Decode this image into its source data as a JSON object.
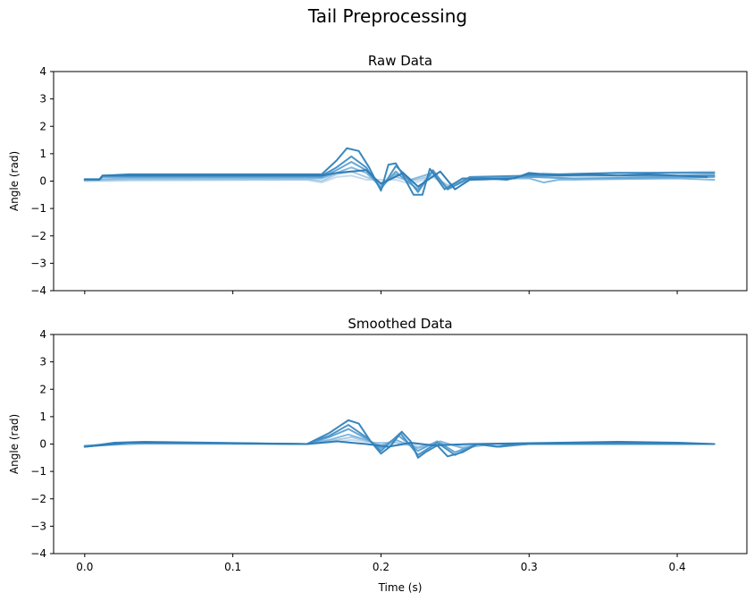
{
  "figure": {
    "title": "Tail Preprocessing"
  },
  "chart_data": [
    {
      "type": "line",
      "title": "Raw Data",
      "xlabel": "",
      "ylabel": "Angle (rad)",
      "xlim": [
        -0.021,
        0.447
      ],
      "ylim": [
        -4,
        4
      ],
      "xticks": [
        0.0,
        0.1,
        0.2,
        0.3,
        0.4
      ],
      "xtick_labels_shown": false,
      "yticks": [
        -4,
        -3,
        -2,
        -1,
        0,
        1,
        2,
        3,
        4
      ],
      "ytick_labels": [
        "−4",
        "−3",
        "−2",
        "−1",
        "0",
        "1",
        "2",
        "3",
        "4"
      ],
      "grid": false,
      "legend": "none",
      "series": [
        {
          "color": "#c6dbef",
          "width": 2.0,
          "points": [
            [
              0,
              0.0
            ],
            [
              0.03,
              0.02
            ],
            [
              0.15,
              0.05
            ],
            [
              0.16,
              -0.05
            ],
            [
              0.17,
              0.15
            ],
            [
              0.18,
              0.2
            ],
            [
              0.19,
              0.05
            ],
            [
              0.2,
              0.05
            ],
            [
              0.21,
              0.05
            ],
            [
              0.22,
              -0.1
            ],
            [
              0.235,
              0.15
            ],
            [
              0.245,
              -0.2
            ],
            [
              0.255,
              0.05
            ],
            [
              0.27,
              0.05
            ],
            [
              0.3,
              0.15
            ],
            [
              0.31,
              0.3
            ],
            [
              0.33,
              0.2
            ],
            [
              0.38,
              0.3
            ],
            [
              0.425,
              0.35
            ]
          ]
        },
        {
          "color": "#a9cce5",
          "width": 2.0,
          "points": [
            [
              0,
              0.0
            ],
            [
              0.03,
              0.05
            ],
            [
              0.15,
              0.05
            ],
            [
              0.16,
              0.0
            ],
            [
              0.17,
              0.25
            ],
            [
              0.18,
              0.35
            ],
            [
              0.19,
              0.15
            ],
            [
              0.2,
              -0.05
            ],
            [
              0.21,
              0.15
            ],
            [
              0.22,
              0.0
            ],
            [
              0.235,
              0.2
            ],
            [
              0.245,
              -0.15
            ],
            [
              0.26,
              0.05
            ],
            [
              0.3,
              0.2
            ],
            [
              0.33,
              0.05
            ],
            [
              0.38,
              0.15
            ],
            [
              0.425,
              0.25
            ]
          ]
        },
        {
          "color": "#84b9de",
          "width": 2.0,
          "points": [
            [
              0,
              0.05
            ],
            [
              0.03,
              0.1
            ],
            [
              0.16,
              0.1
            ],
            [
              0.17,
              0.3
            ],
            [
              0.18,
              0.5
            ],
            [
              0.19,
              0.3
            ],
            [
              0.2,
              -0.2
            ],
            [
              0.205,
              0.1
            ],
            [
              0.21,
              0.25
            ],
            [
              0.22,
              0.05
            ],
            [
              0.235,
              0.3
            ],
            [
              0.245,
              -0.25
            ],
            [
              0.26,
              0.1
            ],
            [
              0.3,
              0.1
            ],
            [
              0.31,
              -0.05
            ],
            [
              0.32,
              0.05
            ],
            [
              0.4,
              0.1
            ],
            [
              0.425,
              0.05
            ]
          ]
        },
        {
          "color": "#65a6d4",
          "width": 2.0,
          "points": [
            [
              0,
              0.05
            ],
            [
              0.01,
              0.05
            ],
            [
              0.012,
              0.15
            ],
            [
              0.03,
              0.15
            ],
            [
              0.16,
              0.15
            ],
            [
              0.17,
              0.4
            ],
            [
              0.18,
              0.7
            ],
            [
              0.19,
              0.4
            ],
            [
              0.2,
              -0.25
            ],
            [
              0.21,
              0.35
            ],
            [
              0.215,
              0.1
            ],
            [
              0.225,
              -0.3
            ],
            [
              0.235,
              0.35
            ],
            [
              0.245,
              -0.3
            ],
            [
              0.26,
              0.1
            ],
            [
              0.3,
              0.15
            ],
            [
              0.33,
              0.1
            ],
            [
              0.425,
              0.15
            ]
          ]
        },
        {
          "color": "#4a93c6",
          "width": 2.0,
          "points": [
            [
              0,
              0.05
            ],
            [
              0.01,
              0.05
            ],
            [
              0.012,
              0.2
            ],
            [
              0.03,
              0.2
            ],
            [
              0.16,
              0.2
            ],
            [
              0.17,
              0.5
            ],
            [
              0.18,
              0.9
            ],
            [
              0.19,
              0.5
            ],
            [
              0.2,
              -0.3
            ],
            [
              0.21,
              0.55
            ],
            [
              0.215,
              0.3
            ],
            [
              0.225,
              -0.4
            ],
            [
              0.235,
              0.4
            ],
            [
              0.245,
              -0.3
            ],
            [
              0.26,
              0.15
            ],
            [
              0.3,
              0.2
            ],
            [
              0.33,
              0.2
            ],
            [
              0.425,
              0.2
            ]
          ]
        },
        {
          "color": "#3a87bd",
          "width": 2.0,
          "points": [
            [
              0,
              0.05
            ],
            [
              0.01,
              0.05
            ],
            [
              0.012,
              0.2
            ],
            [
              0.03,
              0.25
            ],
            [
              0.16,
              0.25
            ],
            [
              0.17,
              0.75
            ],
            [
              0.177,
              1.2
            ],
            [
              0.185,
              1.1
            ],
            [
              0.192,
              0.5
            ],
            [
              0.2,
              -0.35
            ],
            [
              0.205,
              0.6
            ],
            [
              0.21,
              0.65
            ],
            [
              0.215,
              0.2
            ],
            [
              0.222,
              -0.5
            ],
            [
              0.228,
              -0.5
            ],
            [
              0.233,
              0.45
            ],
            [
              0.243,
              -0.3
            ],
            [
              0.255,
              0.1
            ],
            [
              0.27,
              0.1
            ],
            [
              0.285,
              0.05
            ],
            [
              0.3,
              0.25
            ],
            [
              0.32,
              0.25
            ],
            [
              0.36,
              0.3
            ],
            [
              0.425,
              0.3
            ]
          ]
        },
        {
          "color": "#2f7db7",
          "width": 2.0,
          "points": [
            [
              0,
              0.07
            ],
            [
              0.01,
              0.07
            ],
            [
              0.012,
              0.2
            ],
            [
              0.03,
              0.2
            ],
            [
              0.16,
              0.2
            ],
            [
              0.17,
              0.3
            ],
            [
              0.19,
              0.4
            ],
            [
              0.2,
              -0.1
            ],
            [
              0.215,
              0.3
            ],
            [
              0.225,
              -0.2
            ],
            [
              0.24,
              0.35
            ],
            [
              0.25,
              -0.3
            ],
            [
              0.26,
              0.05
            ],
            [
              0.29,
              0.1
            ],
            [
              0.3,
              0.3
            ],
            [
              0.32,
              0.2
            ],
            [
              0.34,
              0.25
            ],
            [
              0.36,
              0.2
            ],
            [
              0.38,
              0.25
            ],
            [
              0.4,
              0.2
            ],
            [
              0.42,
              0.15
            ]
          ]
        }
      ]
    },
    {
      "type": "line",
      "title": "Smoothed Data",
      "xlabel": "Time (s)",
      "ylabel": "Angle (rad)",
      "xlim": [
        -0.021,
        0.447
      ],
      "ylim": [
        -4,
        4
      ],
      "xticks": [
        0.0,
        0.1,
        0.2,
        0.3,
        0.4
      ],
      "xtick_labels": [
        "0.0",
        "0.1",
        "0.2",
        "0.3",
        "0.4"
      ],
      "yticks": [
        -4,
        -3,
        -2,
        -1,
        0,
        1,
        2,
        3,
        4
      ],
      "ytick_labels": [
        "−4",
        "−3",
        "−2",
        "−1",
        "0",
        "1",
        "2",
        "3",
        "4"
      ],
      "grid": false,
      "legend": "none",
      "series": [
        {
          "color": "#c6dbef",
          "width": 2.0,
          "points": [
            [
              0,
              -0.05
            ],
            [
              0.04,
              0.0
            ],
            [
              0.15,
              0.0
            ],
            [
              0.165,
              0.05
            ],
            [
              0.18,
              0.15
            ],
            [
              0.195,
              0.05
            ],
            [
              0.21,
              -0.05
            ],
            [
              0.225,
              0.0
            ],
            [
              0.24,
              -0.05
            ],
            [
              0.26,
              0.0
            ],
            [
              0.3,
              0.0
            ],
            [
              0.425,
              0.0
            ]
          ]
        },
        {
          "color": "#a9cce5",
          "width": 2.0,
          "points": [
            [
              0,
              -0.05
            ],
            [
              0.04,
              0.02
            ],
            [
              0.15,
              0.0
            ],
            [
              0.165,
              0.1
            ],
            [
              0.18,
              0.25
            ],
            [
              0.195,
              0.05
            ],
            [
              0.21,
              0.05
            ],
            [
              0.225,
              -0.1
            ],
            [
              0.24,
              0.05
            ],
            [
              0.255,
              -0.1
            ],
            [
              0.27,
              0.0
            ],
            [
              0.3,
              0.0
            ],
            [
              0.425,
              0.0
            ]
          ]
        },
        {
          "color": "#84b9de",
          "width": 2.0,
          "points": [
            [
              0,
              -0.08
            ],
            [
              0.04,
              0.03
            ],
            [
              0.15,
              0.0
            ],
            [
              0.165,
              0.15
            ],
            [
              0.178,
              0.35
            ],
            [
              0.19,
              0.15
            ],
            [
              0.2,
              -0.05
            ],
            [
              0.21,
              0.15
            ],
            [
              0.225,
              -0.15
            ],
            [
              0.24,
              0.1
            ],
            [
              0.255,
              -0.15
            ],
            [
              0.275,
              0.0
            ],
            [
              0.3,
              0.0
            ],
            [
              0.425,
              0.0
            ]
          ]
        },
        {
          "color": "#65a6d4",
          "width": 2.0,
          "points": [
            [
              0,
              -0.08
            ],
            [
              0.03,
              0.05
            ],
            [
              0.15,
              0.0
            ],
            [
              0.165,
              0.25
            ],
            [
              0.178,
              0.55
            ],
            [
              0.19,
              0.2
            ],
            [
              0.2,
              -0.15
            ],
            [
              0.212,
              0.3
            ],
            [
              0.225,
              -0.25
            ],
            [
              0.238,
              0.1
            ],
            [
              0.25,
              -0.3
            ],
            [
              0.265,
              0.0
            ],
            [
              0.28,
              -0.1
            ],
            [
              0.3,
              0.0
            ],
            [
              0.425,
              0.0
            ]
          ]
        },
        {
          "color": "#4a93c6",
          "width": 2.0,
          "points": [
            [
              0,
              -0.1
            ],
            [
              0.03,
              0.06
            ],
            [
              0.15,
              0.0
            ],
            [
              0.165,
              0.3
            ],
            [
              0.178,
              0.7
            ],
            [
              0.19,
              0.25
            ],
            [
              0.2,
              -0.25
            ],
            [
              0.213,
              0.4
            ],
            [
              0.225,
              -0.4
            ],
            [
              0.238,
              0.05
            ],
            [
              0.25,
              -0.4
            ],
            [
              0.265,
              0.0
            ],
            [
              0.28,
              -0.1
            ],
            [
              0.295,
              0.0
            ],
            [
              0.425,
              0.0
            ]
          ]
        },
        {
          "color": "#3a87bd",
          "width": 2.0,
          "points": [
            [
              0,
              -0.1
            ],
            [
              0.02,
              0.05
            ],
            [
              0.04,
              0.08
            ],
            [
              0.15,
              0.0
            ],
            [
              0.165,
              0.4
            ],
            [
              0.178,
              0.87
            ],
            [
              0.185,
              0.75
            ],
            [
              0.193,
              0.1
            ],
            [
              0.2,
              -0.35
            ],
            [
              0.206,
              -0.1
            ],
            [
              0.214,
              0.45
            ],
            [
              0.22,
              0.1
            ],
            [
              0.225,
              -0.5
            ],
            [
              0.23,
              -0.3
            ],
            [
              0.238,
              -0.05
            ],
            [
              0.245,
              -0.45
            ],
            [
              0.255,
              -0.3
            ],
            [
              0.265,
              0.0
            ],
            [
              0.278,
              -0.1
            ],
            [
              0.29,
              0.0
            ],
            [
              0.36,
              0.05
            ],
            [
              0.425,
              0.0
            ]
          ]
        },
        {
          "color": "#2f7db7",
          "width": 2.0,
          "points": [
            [
              0,
              -0.1
            ],
            [
              0.03,
              0.05
            ],
            [
              0.1,
              0.03
            ],
            [
              0.15,
              0.0
            ],
            [
              0.17,
              0.1
            ],
            [
              0.19,
              0.0
            ],
            [
              0.205,
              -0.1
            ],
            [
              0.22,
              0.05
            ],
            [
              0.235,
              -0.05
            ],
            [
              0.26,
              0.0
            ],
            [
              0.36,
              0.08
            ],
            [
              0.4,
              0.05
            ],
            [
              0.425,
              0.0
            ]
          ]
        }
      ]
    }
  ]
}
